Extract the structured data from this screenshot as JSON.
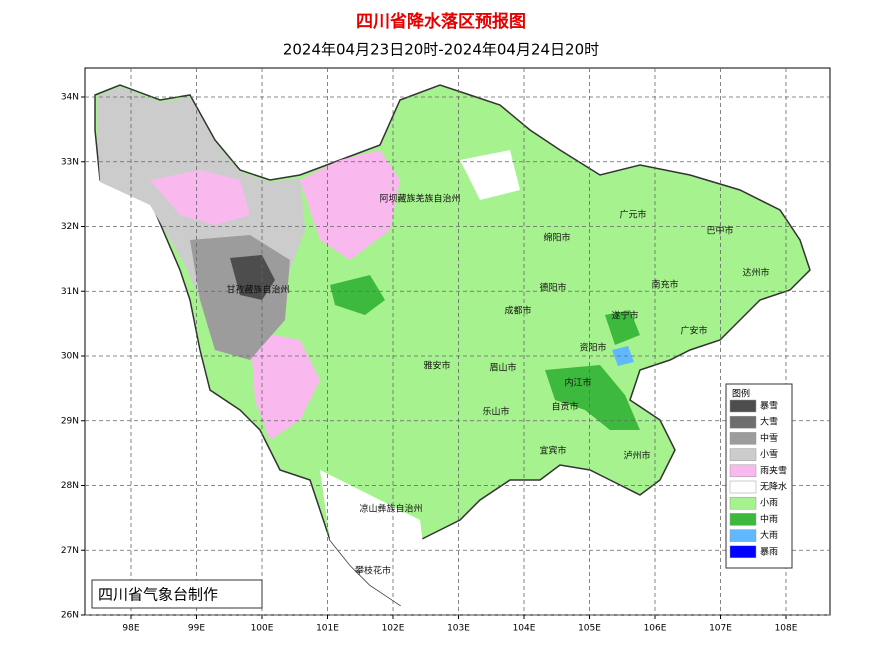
{
  "header": {
    "title": "四川省降水落区预报图",
    "subtitle": "2024年04月23日20时-2024年04月24日20时"
  },
  "axes": {
    "lon_ticks": [
      {
        "value": 98,
        "label": "98E"
      },
      {
        "value": 99,
        "label": "99E"
      },
      {
        "value": 100,
        "label": "100E"
      },
      {
        "value": 101,
        "label": "101E"
      },
      {
        "value": 102,
        "label": "102E"
      },
      {
        "value": 103,
        "label": "103E"
      },
      {
        "value": 104,
        "label": "104E"
      },
      {
        "value": 105,
        "label": "105E"
      },
      {
        "value": 106,
        "label": "106E"
      },
      {
        "value": 107,
        "label": "107E"
      },
      {
        "value": 108,
        "label": "108E"
      }
    ],
    "lat_ticks": [
      {
        "value": 34,
        "label": "34N"
      },
      {
        "value": 33,
        "label": "33N"
      },
      {
        "value": 32,
        "label": "32N"
      },
      {
        "value": 31,
        "label": "31N"
      },
      {
        "value": 30,
        "label": "30N"
      },
      {
        "value": 29,
        "label": "29N"
      },
      {
        "value": 28,
        "label": "28N"
      },
      {
        "value": 27,
        "label": "27N"
      },
      {
        "value": 26,
        "label": "26N"
      }
    ]
  },
  "map": {
    "regions": [
      "阿坝藏族羌族自治州",
      "甘孜藏族自治州",
      "绵阳市",
      "广元市",
      "巴中市",
      "达州市",
      "德阳市",
      "南充市",
      "成都市",
      "遂宁市",
      "广安市",
      "资阳市",
      "雅安市",
      "眉山市",
      "内江市",
      "乐山市",
      "自贡市",
      "宜宾市",
      "泸州市",
      "凉山彝族自治州",
      "攀枝花市"
    ]
  },
  "legend": {
    "title": "图例",
    "items": [
      {
        "label": "暴雪",
        "color": "#4d4d4d"
      },
      {
        "label": "大雪",
        "color": "#6e6e6e"
      },
      {
        "label": "中雪",
        "color": "#9c9c9c"
      },
      {
        "label": "小雪",
        "color": "#cccccc"
      },
      {
        "label": "雨夹雪",
        "color": "#f9b9ef"
      },
      {
        "label": "无降水",
        "color": "#ffffff"
      },
      {
        "label": "小雨",
        "color": "#a6f28f"
      },
      {
        "label": "中雨",
        "color": "#3dba3d"
      },
      {
        "label": "大雨",
        "color": "#61b8ff"
      },
      {
        "label": "暴雨",
        "color": "#0000fe"
      }
    ]
  },
  "footer": "四川省气象台制作"
}
